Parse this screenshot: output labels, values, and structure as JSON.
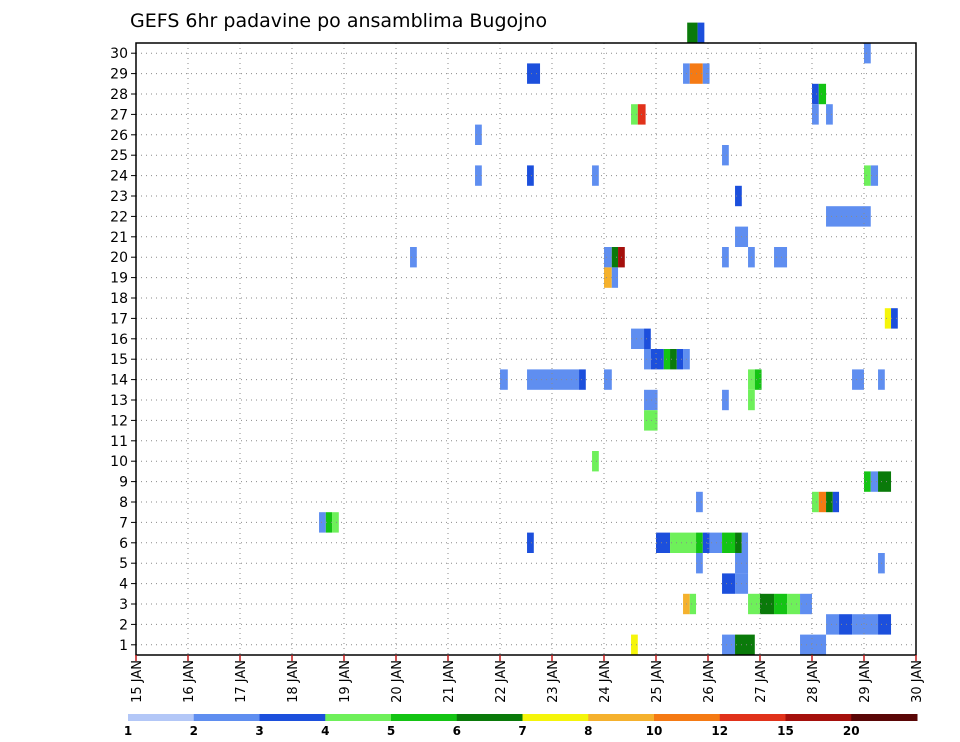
{
  "chart_data": {
    "type": "heatmap",
    "title": "GEFS 6hr padavine po ansamblima Bugojno",
    "y_ticks": [
      "1",
      "2",
      "3",
      "4",
      "5",
      "6",
      "7",
      "8",
      "9",
      "10",
      "11",
      "12",
      "13",
      "14",
      "15",
      "16",
      "17",
      "18",
      "19",
      "20",
      "21",
      "22",
      "23",
      "24",
      "25",
      "26",
      "27",
      "28",
      "29",
      "30"
    ],
    "x_ticks": [
      "15 JAN",
      "16 JAN",
      "17 JAN",
      "18 JAN",
      "19 JAN",
      "20 JAN",
      "21 JAN",
      "22 JAN",
      "23 JAN",
      "24 JAN",
      "25 JAN",
      "26 JAN",
      "27 JAN",
      "28 JAN",
      "29 JAN",
      "30 JAN"
    ],
    "grid": true,
    "legend_position": "bottom",
    "legend_labels": [
      "1",
      "2",
      "3",
      "4",
      "5",
      "6",
      "7",
      "8",
      "10",
      "12",
      "15",
      "20"
    ],
    "legend_colors": [
      "#b3c7f7",
      "#5f8ef0",
      "#1c4fdc",
      "#6ef05a",
      "#14c414",
      "#0a7a0a",
      "#f5f50a",
      "#f5b12d",
      "#f57a14",
      "#e1321a",
      "#a5100c",
      "#5a0606"
    ],
    "cells": [
      [
        30,
        25.6,
        25.8,
        5
      ],
      [
        30,
        25.8,
        25.93,
        2
      ],
      [
        29,
        29.0,
        29.13,
        1
      ],
      [
        28,
        22.52,
        22.77,
        2
      ],
      [
        28,
        25.52,
        25.65,
        1
      ],
      [
        28,
        25.65,
        25.9,
        8
      ],
      [
        28,
        25.9,
        26.03,
        1
      ],
      [
        27,
        28.0,
        28.13,
        2
      ],
      [
        27,
        28.13,
        28.27,
        4
      ],
      [
        26,
        24.52,
        24.65,
        3
      ],
      [
        26,
        24.65,
        24.8,
        9
      ],
      [
        26,
        28.0,
        28.13,
        1
      ],
      [
        26,
        28.27,
        28.4,
        1
      ],
      [
        25,
        21.52,
        21.65,
        1
      ],
      [
        24,
        26.27,
        26.4,
        1
      ],
      [
        23,
        21.52,
        21.65,
        1
      ],
      [
        23,
        22.52,
        22.65,
        2
      ],
      [
        23,
        23.77,
        23.9,
        1
      ],
      [
        23,
        29.0,
        29.13,
        3
      ],
      [
        23,
        29.13,
        29.27,
        1
      ],
      [
        22,
        26.52,
        26.65,
        2
      ],
      [
        21,
        28.27,
        29.13,
        1
      ],
      [
        20,
        26.52,
        26.77,
        1
      ],
      [
        19,
        20.27,
        20.4,
        1
      ],
      [
        19,
        24.0,
        24.15,
        1
      ],
      [
        19,
        24.15,
        24.27,
        5
      ],
      [
        19,
        24.27,
        24.4,
        10
      ],
      [
        19,
        26.27,
        26.4,
        1
      ],
      [
        19,
        26.77,
        26.9,
        1
      ],
      [
        19,
        27.27,
        27.52,
        1
      ],
      [
        18,
        24.0,
        24.15,
        7
      ],
      [
        18,
        24.15,
        24.27,
        1
      ],
      [
        16,
        29.4,
        29.52,
        6
      ],
      [
        16,
        29.52,
        29.65,
        2
      ],
      [
        15,
        24.52,
        24.77,
        1
      ],
      [
        15,
        24.77,
        24.9,
        2
      ],
      [
        14,
        24.77,
        24.9,
        1
      ],
      [
        14,
        24.9,
        25.15,
        2
      ],
      [
        14,
        25.15,
        25.27,
        4
      ],
      [
        14,
        25.27,
        25.4,
        5
      ],
      [
        14,
        25.4,
        25.52,
        2
      ],
      [
        14,
        25.52,
        25.65,
        1
      ],
      [
        13,
        22.0,
        22.15,
        1
      ],
      [
        13,
        22.52,
        23.52,
        1
      ],
      [
        13,
        23.52,
        23.65,
        2
      ],
      [
        13,
        24.0,
        24.15,
        1
      ],
      [
        13,
        26.77,
        26.9,
        3
      ],
      [
        13,
        26.9,
        27.03,
        4
      ],
      [
        13,
        28.77,
        29.0,
        1
      ],
      [
        13,
        29.27,
        29.4,
        1
      ],
      [
        12,
        24.77,
        25.03,
        1
      ],
      [
        12,
        26.27,
        26.4,
        1
      ],
      [
        12,
        26.77,
        26.9,
        3
      ],
      [
        11,
        24.77,
        25.03,
        3
      ],
      [
        9,
        23.77,
        23.9,
        3
      ],
      [
        8,
        29.0,
        29.13,
        4
      ],
      [
        8,
        29.13,
        29.27,
        1
      ],
      [
        8,
        29.27,
        29.52,
        5
      ],
      [
        7,
        25.77,
        25.9,
        1
      ],
      [
        7,
        28.0,
        28.13,
        3
      ],
      [
        7,
        28.13,
        28.27,
        8
      ],
      [
        7,
        28.27,
        28.4,
        5
      ],
      [
        7,
        28.4,
        28.52,
        2
      ],
      [
        6,
        18.52,
        18.65,
        1
      ],
      [
        6,
        18.65,
        18.77,
        4
      ],
      [
        6,
        18.77,
        18.9,
        3
      ],
      [
        5,
        22.52,
        22.65,
        2
      ],
      [
        5,
        25.0,
        25.27,
        2
      ],
      [
        5,
        25.27,
        25.77,
        3
      ],
      [
        5,
        25.77,
        25.9,
        4
      ],
      [
        5,
        25.9,
        26.03,
        2
      ],
      [
        5,
        26.03,
        26.27,
        1
      ],
      [
        5,
        26.27,
        26.52,
        4
      ],
      [
        5,
        26.52,
        26.65,
        5
      ],
      [
        5,
        26.65,
        26.77,
        1
      ],
      [
        4,
        25.77,
        25.9,
        1
      ],
      [
        4,
        26.52,
        26.77,
        1
      ],
      [
        4,
        29.27,
        29.4,
        1
      ],
      [
        3,
        26.27,
        26.52,
        2
      ],
      [
        3,
        26.52,
        26.77,
        1
      ],
      [
        2,
        25.52,
        25.65,
        7
      ],
      [
        2,
        25.65,
        25.77,
        3
      ],
      [
        2,
        26.77,
        27.0,
        3
      ],
      [
        2,
        27.0,
        27.27,
        5
      ],
      [
        2,
        27.27,
        27.52,
        4
      ],
      [
        2,
        27.52,
        27.77,
        3
      ],
      [
        2,
        27.77,
        28.0,
        1
      ],
      [
        1,
        28.27,
        28.52,
        1
      ],
      [
        1,
        28.52,
        28.77,
        2
      ],
      [
        1,
        28.77,
        29.27,
        1
      ],
      [
        1,
        29.27,
        29.52,
        2
      ],
      [
        0,
        24.52,
        24.65,
        6
      ],
      [
        0,
        26.27,
        26.52,
        1
      ],
      [
        0,
        26.52,
        26.9,
        5
      ],
      [
        0,
        27.77,
        28.27,
        1
      ]
    ]
  }
}
